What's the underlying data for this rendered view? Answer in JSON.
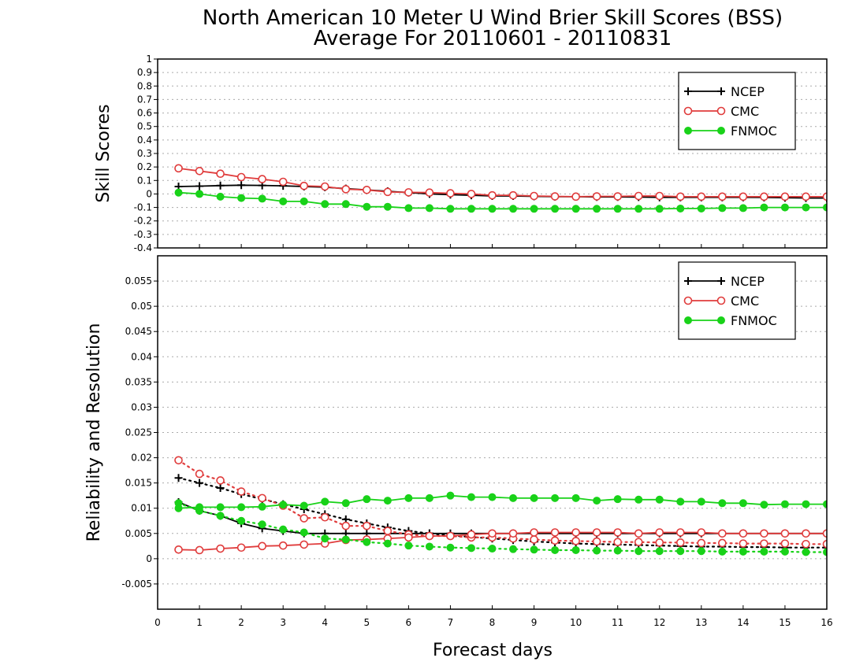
{
  "chart_data": {
    "title_line1": "North American 10 Meter U Wind Brier Skill Scores (BSS)",
    "title_line2": "Average For 20110601 - 20110831",
    "xlabel": "Forecast days",
    "xticks": [
      "0",
      "1",
      "2",
      "3",
      "4",
      "5",
      "6",
      "7",
      "8",
      "9",
      "10",
      "11",
      "12",
      "13",
      "14",
      "15",
      "16"
    ],
    "xlim": [
      0,
      16
    ],
    "colors": {
      "NCEP": "#000000",
      "CMC": "#e03c3c",
      "FNMOC": "#19d219",
      "grid": "#aaaaaa"
    },
    "panels": [
      {
        "type": "line",
        "ylabel": "Skill Scores",
        "ylim": [
          -0.4,
          1
        ],
        "yticks": [
          "1",
          "0.9",
          "0.8",
          "0.7",
          "0.6",
          "0.5",
          "0.4",
          "0.3",
          "0.2",
          "0.1",
          "0",
          "-0.1",
          "-0.2",
          "-0.3",
          "-0.4"
        ],
        "legend": [
          "NCEP",
          "CMC",
          "FNMOC"
        ],
        "legend_position": "top-right",
        "grid": true,
        "x": [
          0.5,
          1,
          1.5,
          2,
          2.5,
          3,
          3.5,
          4,
          4.5,
          5,
          5.5,
          6,
          6.5,
          7,
          7.5,
          8,
          8.5,
          9,
          9.5,
          10,
          10.5,
          11,
          11.5,
          12,
          12.5,
          13,
          13.5,
          14,
          14.5,
          15,
          15.5,
          16
        ],
        "series": [
          {
            "name": "NCEP",
            "style": "solid",
            "marker": "plus",
            "values": [
              0.055,
              0.058,
              0.062,
              0.065,
              0.063,
              0.06,
              0.055,
              0.05,
              0.04,
              0.03,
              0.02,
              0.01,
              0.0,
              -0.005,
              -0.01,
              -0.015,
              -0.015,
              -0.018,
              -0.02,
              -0.02,
              -0.022,
              -0.022,
              -0.023,
              -0.025,
              -0.025,
              -0.025,
              -0.025,
              -0.025,
              -0.026,
              -0.028,
              -0.03,
              -0.03
            ]
          },
          {
            "name": "CMC",
            "style": "solid",
            "marker": "open-circle",
            "values": [
              0.19,
              0.17,
              0.15,
              0.125,
              0.11,
              0.09,
              0.06,
              0.055,
              0.035,
              0.03,
              0.015,
              0.012,
              0.01,
              0.005,
              0.0,
              -0.01,
              -0.01,
              -0.015,
              -0.018,
              -0.02,
              -0.018,
              -0.018,
              -0.015,
              -0.015,
              -0.02,
              -0.02,
              -0.02,
              -0.02,
              -0.02,
              -0.02,
              -0.02,
              -0.02
            ]
          },
          {
            "name": "FNMOC",
            "style": "solid",
            "marker": "filled-circle",
            "values": [
              0.01,
              0.0,
              -0.02,
              -0.03,
              -0.035,
              -0.055,
              -0.055,
              -0.075,
              -0.075,
              -0.095,
              -0.095,
              -0.105,
              -0.105,
              -0.11,
              -0.11,
              -0.11,
              -0.11,
              -0.11,
              -0.11,
              -0.11,
              -0.11,
              -0.11,
              -0.11,
              -0.11,
              -0.108,
              -0.108,
              -0.105,
              -0.105,
              -0.1,
              -0.1,
              -0.1,
              -0.1
            ]
          }
        ]
      },
      {
        "type": "line",
        "ylabel": "Reliability and Resolution",
        "ylim": [
          -0.01,
          0.06
        ],
        "yticks": [
          "0.055",
          "0.05",
          "0.045",
          "0.04",
          "0.035",
          "0.03",
          "0.025",
          "0.02",
          "0.015",
          "0.01",
          "0.005",
          "0",
          "-0.005"
        ],
        "legend": [
          "NCEP",
          "CMC",
          "FNMOC"
        ],
        "legend_position": "top-right",
        "grid": true,
        "x": [
          0.5,
          1,
          1.5,
          2,
          2.5,
          3,
          3.5,
          4,
          4.5,
          5,
          5.5,
          6,
          6.5,
          7,
          7.5,
          8,
          8.5,
          9,
          9.5,
          10,
          10.5,
          11,
          11.5,
          12,
          12.5,
          13,
          13.5,
          14,
          14.5,
          15,
          15.5,
          16
        ],
        "series": [
          {
            "name": "NCEP",
            "metric": "reliability",
            "style": "dotted",
            "marker": "plus",
            "values": [
              0.016,
              0.015,
              0.014,
              0.0128,
              0.0118,
              0.0108,
              0.0098,
              0.0088,
              0.0078,
              0.007,
              0.0062,
              0.0055,
              0.005,
              0.0046,
              0.0043,
              0.004,
              0.0037,
              0.0034,
              0.0032,
              0.003,
              0.0029,
              0.0028,
              0.0027,
              0.0026,
              0.0025,
              0.0024,
              0.0024,
              0.0023,
              0.0023,
              0.0022,
              0.0022,
              0.0022
            ]
          },
          {
            "name": "NCEP",
            "metric": "resolution",
            "style": "solid",
            "marker": "plus",
            "values": [
              0.0112,
              0.0095,
              0.0085,
              0.007,
              0.006,
              0.0055,
              0.005,
              0.005,
              0.005,
              0.005,
              0.005,
              0.005,
              0.005,
              0.005,
              0.005,
              0.005,
              0.005,
              0.005,
              0.005,
              0.005,
              0.005,
              0.005,
              0.005,
              0.005,
              0.005,
              0.005,
              0.005,
              0.005,
              0.005,
              0.005,
              0.005,
              0.005
            ]
          },
          {
            "name": "CMC",
            "metric": "reliability",
            "style": "dotted",
            "marker": "open-circle",
            "values": [
              0.0195,
              0.0168,
              0.0155,
              0.0133,
              0.012,
              0.0105,
              0.008,
              0.0082,
              0.0065,
              0.0065,
              0.0055,
              0.0048,
              0.0045,
              0.0045,
              0.0042,
              0.0042,
              0.004,
              0.0038,
              0.0036,
              0.0035,
              0.0034,
              0.0033,
              0.0033,
              0.0032,
              0.0032,
              0.0031,
              0.0031,
              0.003,
              0.003,
              0.003,
              0.0029,
              0.0029
            ]
          },
          {
            "name": "CMC",
            "metric": "resolution",
            "style": "solid",
            "marker": "open-circle",
            "values": [
              0.0018,
              0.0017,
              0.002,
              0.0022,
              0.0025,
              0.0026,
              0.0028,
              0.003,
              0.0037,
              0.0038,
              0.004,
              0.0042,
              0.0045,
              0.0045,
              0.0048,
              0.005,
              0.005,
              0.0052,
              0.0052,
              0.0052,
              0.0052,
              0.0052,
              0.005,
              0.0052,
              0.0052,
              0.0052,
              0.005,
              0.005,
              0.005,
              0.005,
              0.005,
              0.005
            ]
          },
          {
            "name": "FNMOC",
            "metric": "reliability",
            "style": "dotted",
            "marker": "filled-circle",
            "values": [
              0.011,
              0.0095,
              0.0085,
              0.0075,
              0.0068,
              0.0058,
              0.0052,
              0.004,
              0.0038,
              0.0033,
              0.003,
              0.0026,
              0.0024,
              0.0022,
              0.0021,
              0.002,
              0.0019,
              0.0018,
              0.0017,
              0.0017,
              0.0016,
              0.0016,
              0.0015,
              0.0015,
              0.0015,
              0.0015,
              0.0014,
              0.0014,
              0.0014,
              0.0014,
              0.0013,
              0.0013
            ]
          },
          {
            "name": "FNMOC",
            "metric": "resolution",
            "style": "solid",
            "marker": "filled-circle",
            "values": [
              0.01,
              0.0102,
              0.0102,
              0.0102,
              0.0103,
              0.0107,
              0.0105,
              0.0113,
              0.011,
              0.0118,
              0.0115,
              0.012,
              0.012,
              0.0125,
              0.0122,
              0.0122,
              0.012,
              0.012,
              0.012,
              0.012,
              0.0115,
              0.0118,
              0.0117,
              0.0117,
              0.0113,
              0.0113,
              0.011,
              0.011,
              0.0107,
              0.0108,
              0.0108,
              0.0108
            ]
          }
        ]
      }
    ]
  }
}
